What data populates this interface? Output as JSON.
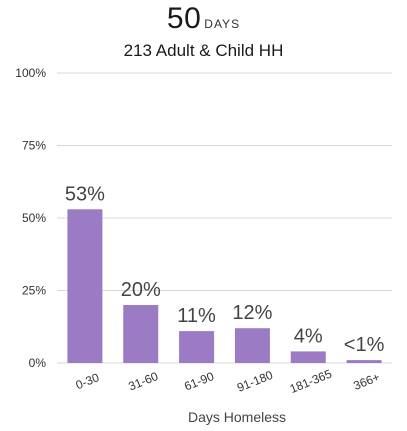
{
  "header": {
    "metric_value": "50",
    "metric_unit": "DAYS",
    "subtitle": "213 Adult & Child HH"
  },
  "chart_data": {
    "type": "bar",
    "title": "",
    "xlabel": "Days Homeless",
    "ylabel": "",
    "ylim": [
      0,
      100
    ],
    "y_ticks": [
      0,
      25,
      50,
      75,
      100
    ],
    "y_tick_labels": [
      "0%",
      "25%",
      "50%",
      "75%",
      "100%"
    ],
    "categories": [
      "0-30",
      "31-60",
      "61-90",
      "91-180",
      "181-365",
      "366+"
    ],
    "values": [
      53,
      20,
      11,
      12,
      4,
      1
    ],
    "data_labels": [
      "53%",
      "20%",
      "11%",
      "12%",
      "4%",
      "<1%"
    ],
    "grid": true,
    "bar_color": "#9b7cc4",
    "grid_color": "#d9d9d9"
  }
}
